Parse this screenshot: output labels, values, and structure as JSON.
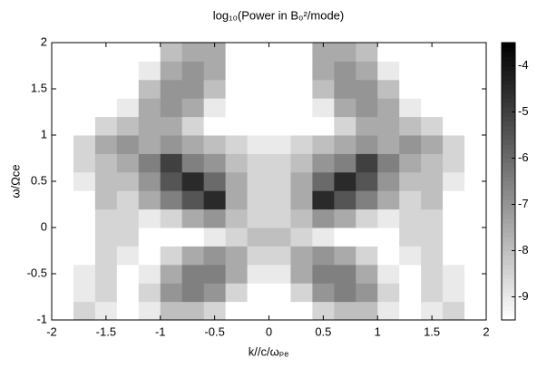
{
  "chart_data": {
    "type": "heatmap",
    "title": "log₁₀(Power in  B₀²/mode)",
    "xlabel": "k//c/ωₚₑ",
    "ylabel": "ω/Ωce",
    "colormap": "gray",
    "x": [
      -1.9,
      -1.7,
      -1.5,
      -1.3,
      -1.1,
      -0.9,
      -0.7,
      -0.5,
      -0.3,
      -0.1,
      0.1,
      0.3,
      0.5,
      0.7,
      0.9,
      1.1,
      1.3,
      1.5,
      1.7,
      1.9
    ],
    "y": [
      -0.9,
      -0.7,
      -0.5,
      -0.3,
      -0.1,
      0.1,
      0.3,
      0.5,
      0.7,
      0.9,
      1.1,
      1.3,
      1.5,
      1.7,
      1.9
    ],
    "z": [
      [
        -9.5,
        -8.5,
        -9,
        -9.5,
        -9,
        -8,
        -8,
        -8.5,
        -9.5,
        -9.5,
        -9.5,
        -9.5,
        -8.5,
        -8,
        -8,
        -9,
        -9.5,
        -9,
        -8.5,
        -9.5
      ],
      [
        -9.5,
        -9,
        -8.5,
        -9.5,
        -8.5,
        -7,
        -6.5,
        -7,
        -8.5,
        -9.5,
        -9.5,
        -8.5,
        -7,
        -6.5,
        -7,
        -8.5,
        -9.5,
        -8.5,
        -9,
        -9.5
      ],
      [
        -9.5,
        -9,
        -8.5,
        -9.5,
        -9,
        -7.5,
        -6.5,
        -6.5,
        -7.5,
        -9,
        -9,
        -7.5,
        -6.5,
        -6.5,
        -7.5,
        -9,
        -9.5,
        -8.5,
        -9,
        -9.5
      ],
      [
        -9.5,
        -9.5,
        -8.5,
        -9,
        -9.5,
        -8.5,
        -7.5,
        -7,
        -7.5,
        -8.5,
        -8.5,
        -7.5,
        -7,
        -7.5,
        -8.5,
        -9.5,
        -9,
        -8.5,
        -9.5,
        -9.5
      ],
      [
        -9.5,
        -9.5,
        -8.5,
        -8.5,
        -9.5,
        -9.5,
        -9.5,
        -9,
        -8.5,
        -8,
        -8,
        -8.5,
        -9,
        -9.5,
        -9.5,
        -9.5,
        -8.5,
        -8.5,
        -9.5,
        -9.5
      ],
      [
        -9.5,
        -9.5,
        -8.5,
        -8.5,
        -9,
        -8.5,
        -7.5,
        -7,
        -8,
        -8.5,
        -8.5,
        -8,
        -7,
        -7.5,
        -8.5,
        -9,
        -8.5,
        -8.5,
        -9.5,
        -9.5
      ],
      [
        -9.5,
        -9.5,
        -8,
        -8.5,
        -7.5,
        -6.5,
        -5.5,
        -4.5,
        -7.5,
        -8.5,
        -8.5,
        -7.5,
        -4.5,
        -5.5,
        -6.5,
        -7.5,
        -8.5,
        -8,
        -9.5,
        -9.5
      ],
      [
        -9.5,
        -9,
        -8,
        -8,
        -7,
        -5.5,
        -4.5,
        -6,
        -7.5,
        -8.5,
        -8.5,
        -7.5,
        -6,
        -4.5,
        -5.5,
        -7,
        -8,
        -8,
        -9,
        -9.5
      ],
      [
        -9.5,
        -8.5,
        -8,
        -7.5,
        -6.5,
        -5,
        -6.5,
        -7,
        -8,
        -8.5,
        -8.5,
        -8,
        -7,
        -6.5,
        -5,
        -6.5,
        -7.5,
        -8,
        -8.5,
        -9.5
      ],
      [
        -9.5,
        -8.5,
        -7.5,
        -7,
        -7.5,
        -7,
        -7.5,
        -8,
        -8.5,
        -9,
        -9,
        -8.5,
        -8,
        -7.5,
        -7,
        -7.5,
        -7,
        -7.5,
        -8.5,
        -9.5
      ],
      [
        -9.5,
        -9.5,
        -8.5,
        -8,
        -7.5,
        -7.5,
        -8.5,
        -9.5,
        -9.5,
        -9.5,
        -9.5,
        -9.5,
        -9.5,
        -8.5,
        -7.5,
        -7.5,
        -8,
        -8.5,
        -9.5,
        -9.5
      ],
      [
        -9.5,
        -9.5,
        -9.5,
        -9,
        -7.5,
        -7,
        -7.5,
        -9,
        -9.5,
        -9.5,
        -9.5,
        -9.5,
        -9,
        -7.5,
        -7,
        -7.5,
        -9,
        -9.5,
        -9.5,
        -9.5
      ],
      [
        -9.5,
        -9.5,
        -9.5,
        -9.5,
        -8,
        -7,
        -7,
        -8,
        -9.5,
        -9.5,
        -9.5,
        -9.5,
        -8,
        -7,
        -7,
        -8,
        -9.5,
        -9.5,
        -9.5,
        -9.5
      ],
      [
        -9.5,
        -9.5,
        -9.5,
        -9.5,
        -9,
        -7.5,
        -7,
        -7.5,
        -9.5,
        -9.5,
        -9.5,
        -9.5,
        -7.5,
        -7,
        -7.5,
        -9,
        -9.5,
        -9.5,
        -9.5,
        -9.5
      ],
      [
        -9.5,
        -9.5,
        -9.5,
        -9.5,
        -9.5,
        -8,
        -7.5,
        -7.5,
        -9.5,
        -9.5,
        -9.5,
        -9.5,
        -7.5,
        -7.5,
        -8,
        -9.5,
        -9.5,
        -9.5,
        -9.5,
        -9.5
      ]
    ],
    "xlim": [
      -2,
      2
    ],
    "ylim": [
      -1,
      2
    ],
    "zlim": [
      -9.5,
      -3.5
    ],
    "xticks": [
      -2,
      -1.5,
      -1,
      -0.5,
      0,
      0.5,
      1,
      1.5,
      2
    ],
    "yticks": [
      -1,
      -0.5,
      0,
      0.5,
      1,
      1.5,
      2
    ],
    "zticks": [
      -9,
      -8,
      -7,
      -6,
      -5,
      -4
    ]
  }
}
